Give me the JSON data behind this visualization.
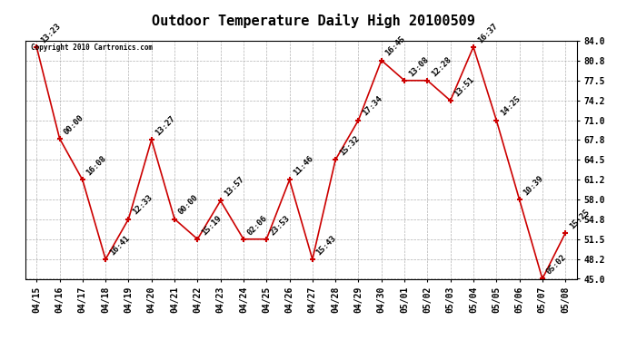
{
  "title": "Outdoor Temperature Daily High 20100509",
  "copyright": "Copyright 2010 Cartronics.com",
  "dates": [
    "04/15",
    "04/16",
    "04/17",
    "04/18",
    "04/19",
    "04/20",
    "04/21",
    "04/22",
    "04/23",
    "04/24",
    "04/25",
    "04/26",
    "04/27",
    "04/28",
    "04/29",
    "04/30",
    "05/01",
    "05/02",
    "05/03",
    "05/04",
    "05/05",
    "05/06",
    "05/07",
    "05/08"
  ],
  "temps": [
    83.0,
    68.0,
    61.2,
    48.2,
    54.8,
    67.8,
    54.8,
    51.5,
    57.8,
    51.5,
    51.5,
    61.2,
    48.2,
    64.5,
    71.0,
    80.8,
    77.5,
    77.5,
    74.2,
    83.0,
    71.0,
    58.0,
    45.0,
    52.5
  ],
  "times": [
    "13:23",
    "00:00",
    "16:08",
    "16:41",
    "12:33",
    "13:27",
    "00:00",
    "15:19",
    "13:57",
    "02:06",
    "23:53",
    "11:46",
    "15:43",
    "15:32",
    "17:34",
    "16:45",
    "13:08",
    "12:28",
    "13:51",
    "16:37",
    "14:25",
    "10:39",
    "05:02",
    "15:25"
  ],
  "ylim": [
    45.0,
    84.0
  ],
  "yticks": [
    45.0,
    48.2,
    51.5,
    54.8,
    58.0,
    61.2,
    64.5,
    67.8,
    71.0,
    74.2,
    77.5,
    80.8,
    84.0
  ],
  "line_color": "#cc0000",
  "marker_color": "#cc0000",
  "bg_color": "#ffffff",
  "grid_color": "#aaaaaa",
  "text_color": "#000000",
  "title_fontsize": 11,
  "tick_fontsize": 7,
  "annot_fontsize": 6.5
}
